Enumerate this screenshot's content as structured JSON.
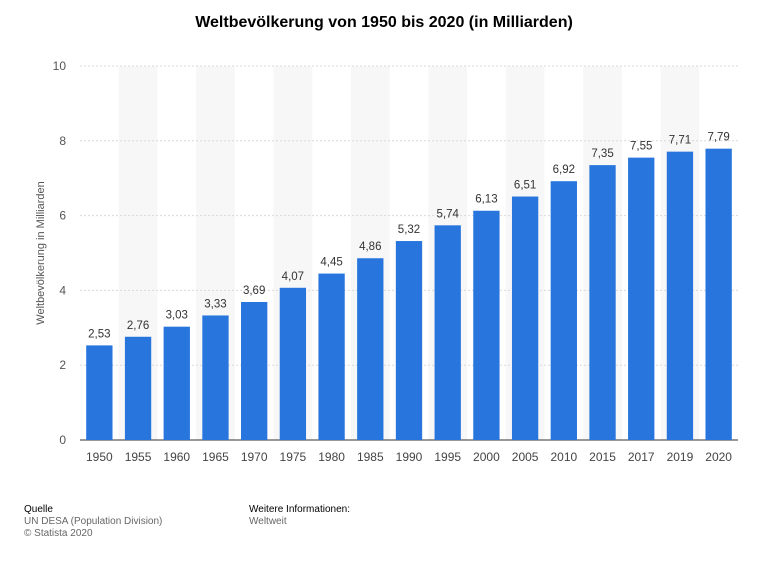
{
  "chart_data": {
    "type": "bar",
    "title": "Weltbevölkerung von 1950 bis 2020 (in Milliarden)",
    "ylabel": "Weltbevölkerung in Milliarden",
    "xlabel": "",
    "categories": [
      "1950",
      "1955",
      "1960",
      "1965",
      "1970",
      "1975",
      "1980",
      "1985",
      "1990",
      "1995",
      "2000",
      "2005",
      "2010",
      "2015",
      "2017",
      "2019",
      "2020"
    ],
    "values": [
      2.53,
      2.76,
      3.03,
      3.33,
      3.69,
      4.07,
      4.45,
      4.86,
      5.32,
      5.74,
      6.13,
      6.51,
      6.92,
      7.35,
      7.55,
      7.71,
      7.79
    ],
    "value_labels": [
      "2,53",
      "2,76",
      "3,03",
      "3,33",
      "3,69",
      "4,07",
      "4,45",
      "4,86",
      "5,32",
      "5,74",
      "6,13",
      "6,51",
      "6,92",
      "7,35",
      "7,55",
      "7,71",
      "7,79"
    ],
    "ylim": [
      0,
      10
    ],
    "yticks": [
      0,
      2,
      4,
      6,
      8,
      10
    ],
    "grid": true,
    "bar_color": "#2876dd"
  },
  "footer": {
    "source_heading": "Quelle",
    "source_name": "UN DESA (Population Division)",
    "copyright": "© Statista 2020",
    "info_heading": "Weitere Informationen:",
    "info_value": "Weltweit"
  }
}
